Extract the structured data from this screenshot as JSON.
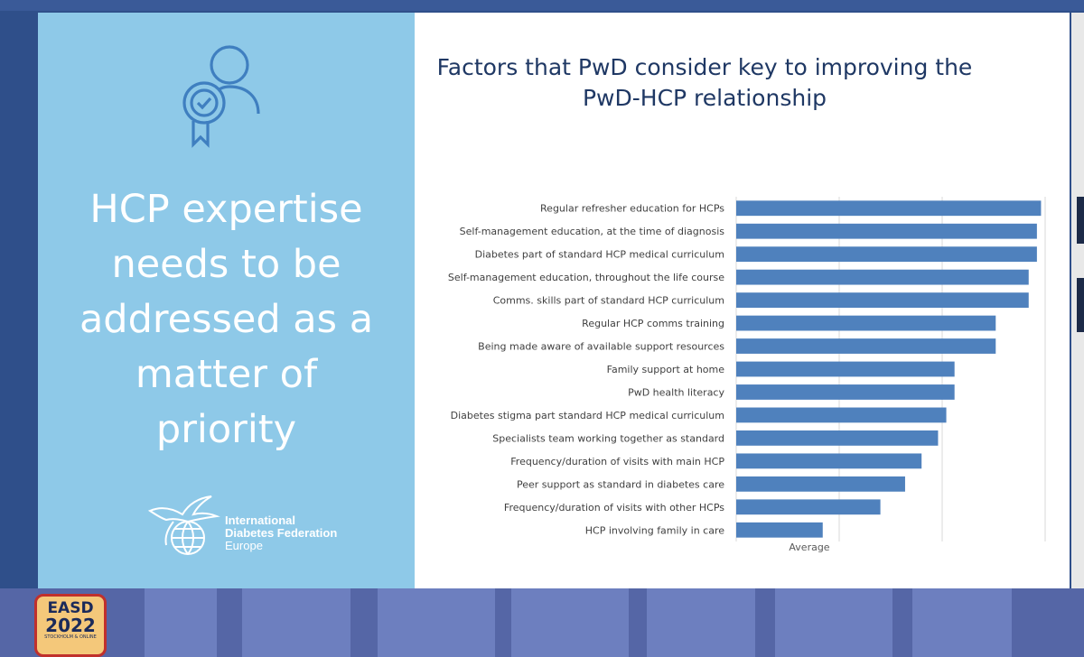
{
  "slide": {
    "headline_lines": [
      "HCP expertise",
      "needs to be",
      "addressed as a",
      "matter of",
      "priority"
    ],
    "logo": {
      "line1": "International",
      "line2": "Diabetes Federation",
      "line3": "Europe"
    }
  },
  "badge": {
    "line1": "EASD",
    "line2": "2022",
    "line3": "STOCKHOLM & ONLINE"
  },
  "colors": {
    "bar": "#4f81bd",
    "grid": "#d9d9d9",
    "panel": "#8ec9e8",
    "title": "#1f3864"
  },
  "chart_data": {
    "type": "bar",
    "orientation": "horizontal",
    "title_lines": [
      "Factors that PwD consider key to improving the",
      "PwD-HCP relationship"
    ],
    "xlabel": "Average",
    "categories": [
      "Regular refresher education for HCPs",
      "Self-management education, at the time of diagnosis",
      "Diabetes part of standard HCP medical curriculum",
      "Self-management education, throughout the life course",
      "Comms. skills part of standard HCP curriculum",
      "Regular HCP comms training",
      "Being made aware of available support resources",
      "Family support at home",
      "PwD health literacy",
      "Diabetes stigma part standard HCP medical curriculum",
      "Specialists team working together as standard",
      "Frequency/duration of visits with main HCP",
      "Peer support as standard in diabetes care",
      "Frequency/duration of visits with other HCPs",
      "HCP involving family in care"
    ],
    "values": [
      4.24,
      4.23,
      4.23,
      4.21,
      4.21,
      4.13,
      4.13,
      4.03,
      4.03,
      4.01,
      3.99,
      3.95,
      3.91,
      3.85,
      3.71
    ],
    "xlim": [
      3.5,
      4.25
    ],
    "gridlines": [
      3.5,
      3.75,
      4.0,
      4.25
    ],
    "tick_labels_shown": false
  }
}
